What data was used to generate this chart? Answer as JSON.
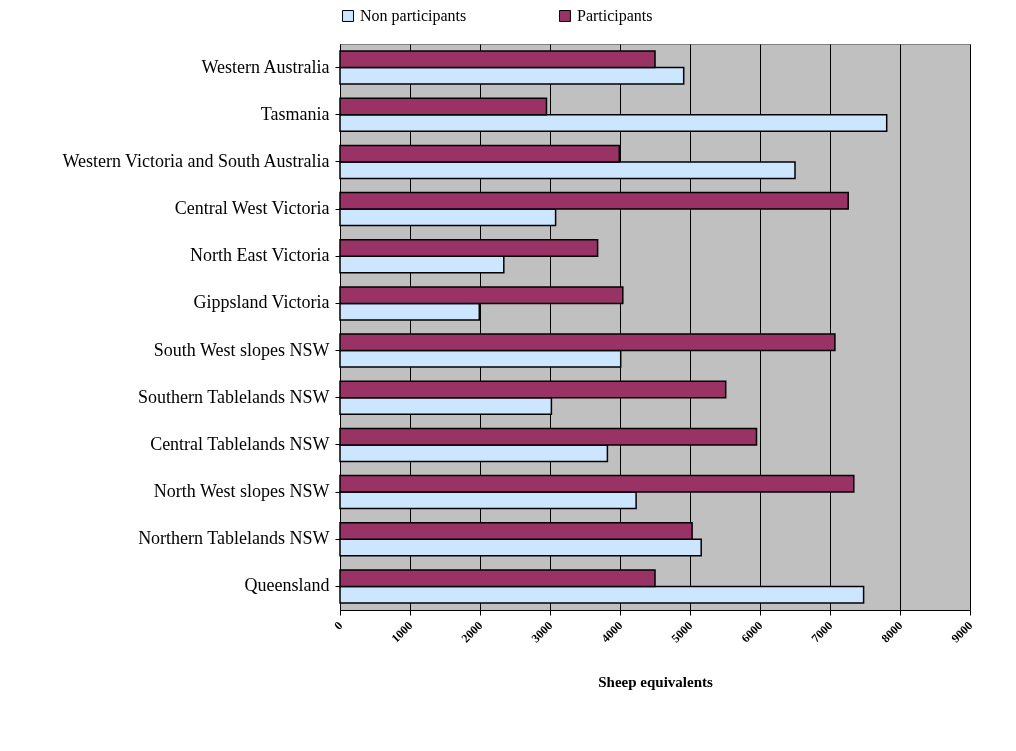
{
  "chart_data": {
    "type": "bar",
    "orientation": "horizontal",
    "xlabel": "Sheep equivalents",
    "categories": [
      "Western Australia",
      "Tasmania",
      "Western Victoria and South Australia",
      "Central West Victoria",
      "North East Victoria",
      "Gippsland Victoria",
      "South West slopes NSW",
      "Southern Tablelands NSW",
      "Central Tablelands NSW",
      "North West slopes NSW",
      "Northern Tablelands NSW",
      "Queensland"
    ],
    "series": [
      {
        "name": "Non participants",
        "color": "#cce6ff",
        "values": [
          4910,
          7810,
          6500,
          3080,
          2340,
          1990,
          4010,
          3020,
          3820,
          4230,
          5160,
          7480
        ]
      },
      {
        "name": "Participants",
        "color": "#993366",
        "values": [
          4500,
          2950,
          3990,
          7260,
          3680,
          4040,
          7070,
          5510,
          5950,
          7340,
          5030,
          4500
        ]
      }
    ],
    "xlim": [
      0,
      9000
    ],
    "xticks": [
      0,
      1000,
      2000,
      3000,
      4000,
      5000,
      6000,
      7000,
      8000,
      9000
    ],
    "grid": "x",
    "legend": "top"
  }
}
